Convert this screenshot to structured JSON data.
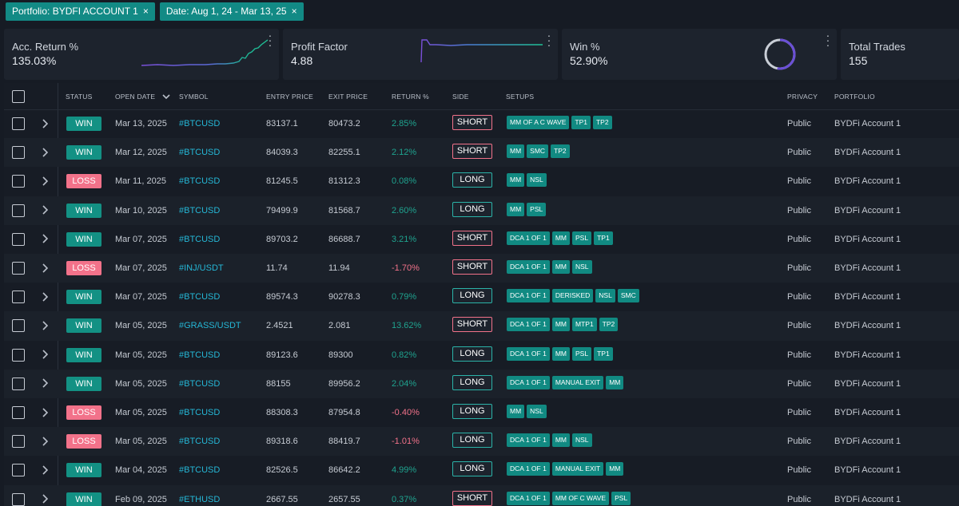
{
  "filters": [
    {
      "label": "Portfolio:  BYDFI ACCOUNT 1"
    },
    {
      "label": "Date:  Aug 1, 24 - Mar 13, 25"
    }
  ],
  "filter_close_glyph": "×",
  "cards": [
    {
      "label": "Acc. Return %",
      "value": "135.03%"
    },
    {
      "label": "Profit Factor",
      "value": "4.88"
    },
    {
      "label": "Win %",
      "value": "52.90%"
    },
    {
      "label": "Total Trades",
      "value": "155"
    }
  ],
  "colors": {
    "accent": "#128a85",
    "win": "#139184",
    "loss": "#f2728a",
    "symbol": "#25b7d6",
    "long": "#2bb3a8",
    "short": "#f2728a"
  },
  "headers": {
    "status": "STATUS",
    "open_date": "OPEN DATE",
    "symbol": "SYMBOL",
    "entry": "ENTRY PRICE",
    "exit": "EXIT PRICE",
    "return": "RETURN %",
    "side": "SIDE",
    "setups": "SETUPS",
    "privacy": "PRIVACY",
    "portfolio": "PORTFOLIO"
  },
  "rows": [
    {
      "status": "WIN",
      "date": "Mar 13, 2025",
      "symbol": "#BTCUSD",
      "entry": "83137.1",
      "exit": "80473.2",
      "ret": "2.85%",
      "side": "SHORT",
      "setups": [
        "MM OF A C WAVE",
        "TP1",
        "TP2"
      ],
      "privacy": "Public",
      "portfolio": "BYDFi Account 1"
    },
    {
      "status": "WIN",
      "date": "Mar 12, 2025",
      "symbol": "#BTCUSD",
      "entry": "84039.3",
      "exit": "82255.1",
      "ret": "2.12%",
      "side": "SHORT",
      "setups": [
        "MM",
        "SMC",
        "TP2"
      ],
      "privacy": "Public",
      "portfolio": "BYDFi Account 1"
    },
    {
      "status": "LOSS",
      "date": "Mar 11, 2025",
      "symbol": "#BTCUSD",
      "entry": "81245.5",
      "exit": "81312.3",
      "ret": "0.08%",
      "side": "LONG",
      "setups": [
        "MM",
        "NSL"
      ],
      "privacy": "Public",
      "portfolio": "BYDFi Account 1"
    },
    {
      "status": "WIN",
      "date": "Mar 10, 2025",
      "symbol": "#BTCUSD",
      "entry": "79499.9",
      "exit": "81568.7",
      "ret": "2.60%",
      "side": "LONG",
      "setups": [
        "MM",
        "PSL"
      ],
      "privacy": "Public",
      "portfolio": "BYDFi Account 1"
    },
    {
      "status": "WIN",
      "date": "Mar 07, 2025",
      "symbol": "#BTCUSD",
      "entry": "89703.2",
      "exit": "86688.7",
      "ret": "3.21%",
      "side": "SHORT",
      "setups": [
        "DCA 1 OF 1",
        "MM",
        "PSL",
        "TP1"
      ],
      "privacy": "Public",
      "portfolio": "BYDFi Account 1"
    },
    {
      "status": "LOSS",
      "date": "Mar 07, 2025",
      "symbol": "#INJ/USDT",
      "entry": "11.74",
      "exit": "11.94",
      "ret": "-1.70%",
      "side": "SHORT",
      "setups": [
        "DCA 1 OF 1",
        "MM",
        "NSL"
      ],
      "privacy": "Public",
      "portfolio": "BYDFi Account 1"
    },
    {
      "status": "WIN",
      "date": "Mar 07, 2025",
      "symbol": "#BTCUSD",
      "entry": "89574.3",
      "exit": "90278.3",
      "ret": "0.79%",
      "side": "LONG",
      "setups": [
        "DCA 1 OF 1",
        "DERISKED",
        "NSL",
        "SMC"
      ],
      "privacy": "Public",
      "portfolio": "BYDFi Account 1"
    },
    {
      "status": "WIN",
      "date": "Mar 05, 2025",
      "symbol": "#GRASS/USDT",
      "entry": "2.4521",
      "exit": "2.081",
      "ret": "13.62%",
      "side": "SHORT",
      "setups": [
        "DCA 1 OF 1",
        "MM",
        "MTP1",
        "TP2"
      ],
      "privacy": "Public",
      "portfolio": "BYDFi Account 1"
    },
    {
      "status": "WIN",
      "date": "Mar 05, 2025",
      "symbol": "#BTCUSD",
      "entry": "89123.6",
      "exit": "89300",
      "ret": "0.82%",
      "side": "LONG",
      "setups": [
        "DCA 1 OF 1",
        "MM",
        "PSL",
        "TP1"
      ],
      "privacy": "Public",
      "portfolio": "BYDFi Account 1"
    },
    {
      "status": "WIN",
      "date": "Mar 05, 2025",
      "symbol": "#BTCUSD",
      "entry": "88155",
      "exit": "89956.2",
      "ret": "2.04%",
      "side": "LONG",
      "setups": [
        "DCA 1 OF 1",
        "MANUAL EXIT",
        "MM"
      ],
      "privacy": "Public",
      "portfolio": "BYDFi Account 1"
    },
    {
      "status": "LOSS",
      "date": "Mar 05, 2025",
      "symbol": "#BTCUSD",
      "entry": "88308.3",
      "exit": "87954.8",
      "ret": "-0.40%",
      "side": "LONG",
      "setups": [
        "MM",
        "NSL"
      ],
      "privacy": "Public",
      "portfolio": "BYDFi Account 1"
    },
    {
      "status": "LOSS",
      "date": "Mar 05, 2025",
      "symbol": "#BTCUSD",
      "entry": "89318.6",
      "exit": "88419.7",
      "ret": "-1.01%",
      "side": "LONG",
      "setups": [
        "DCA 1 OF 1",
        "MM",
        "NSL"
      ],
      "privacy": "Public",
      "portfolio": "BYDFi Account 1"
    },
    {
      "status": "WIN",
      "date": "Mar 04, 2025",
      "symbol": "#BTCUSD",
      "entry": "82526.5",
      "exit": "86642.2",
      "ret": "4.99%",
      "side": "LONG",
      "setups": [
        "DCA 1 OF 1",
        "MANUAL EXIT",
        "MM"
      ],
      "privacy": "Public",
      "portfolio": "BYDFi Account 1"
    },
    {
      "status": "WIN",
      "date": "Feb 09, 2025",
      "symbol": "#ETHUSD",
      "entry": "2667.55",
      "exit": "2657.55",
      "ret": "0.37%",
      "side": "SHORT",
      "setups": [
        "DCA 1 OF 1",
        "MM OF C WAVE",
        "PSL"
      ],
      "privacy": "Public",
      "portfolio": "BYDFi Account 1"
    }
  ]
}
